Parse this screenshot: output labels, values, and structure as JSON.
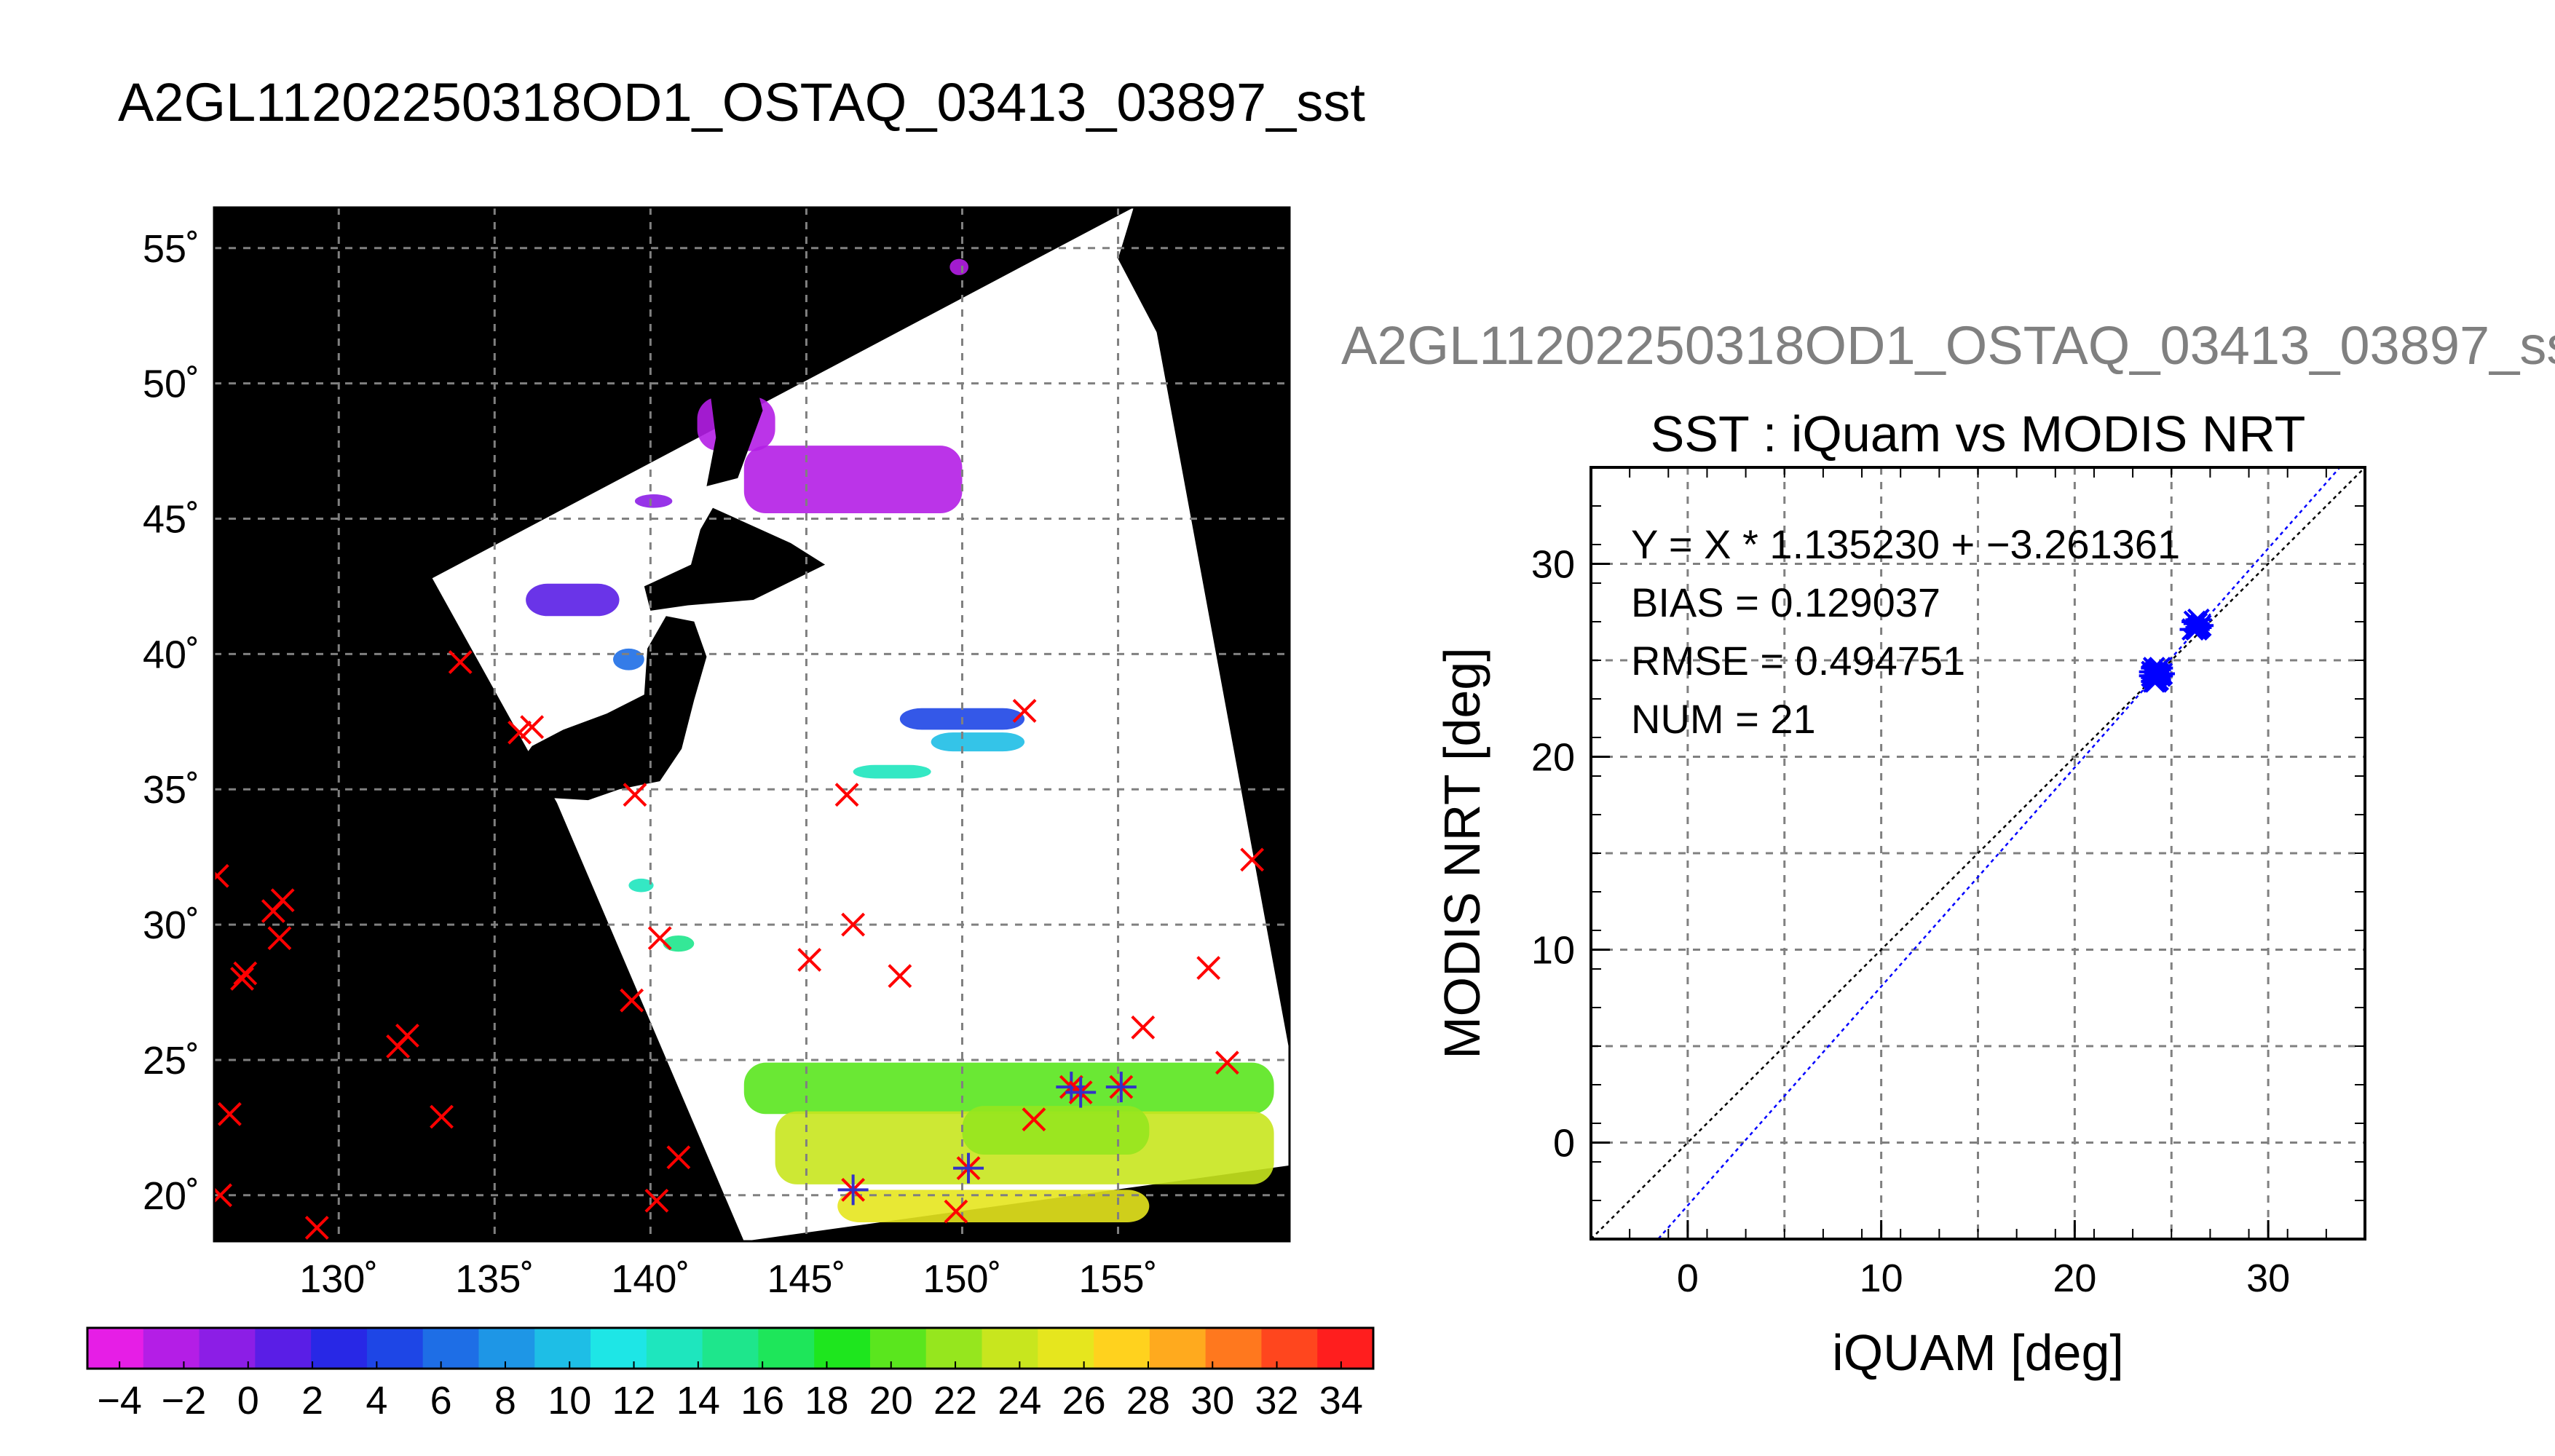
{
  "figure_title": "A2GL11202250318OD1_OSTAQ_03413_03897_sst",
  "colors": {
    "land": "#000000",
    "no_data": "#ffffff",
    "matchup_marker": "#ff0000",
    "used_marker": "#3232c8",
    "fit_line": "#0000ff",
    "identity_line": "#000000",
    "grid": "#808080"
  },
  "chart_data": [
    {
      "type": "heatmap",
      "title": "A2GL11202250318OD1_OSTAQ_03413_03897_sst",
      "description_kind": "sea surface temperature swath map with in-situ matchup markers",
      "xlim": [
        126,
        160.5
      ],
      "ylim": [
        18.3,
        56.5
      ],
      "x_ticks": [
        130,
        135,
        140,
        145,
        150,
        155
      ],
      "x_tick_labels": [
        "130˚",
        "135˚",
        "140˚",
        "145˚",
        "150˚",
        "155˚"
      ],
      "y_ticks": [
        20,
        25,
        30,
        35,
        40,
        45,
        50,
        55
      ],
      "y_tick_labels": [
        "20˚",
        "25˚",
        "30˚",
        "35˚",
        "40˚",
        "45˚",
        "50˚",
        "55˚"
      ],
      "grid": true,
      "swath_corners": [
        {
          "lon": 133.0,
          "lat": 42.8
        },
        {
          "lon": 155.5,
          "lat": 56.5
        },
        {
          "lon": 160.5,
          "lat": 25.3
        },
        {
          "lon": 160.5,
          "lat": 21.1
        },
        {
          "lon": 143.0,
          "lat": 18.3
        },
        {
          "lon": 137.0,
          "lat": 34.5
        }
      ],
      "sst_patches": [
        {
          "lon": 143.0,
          "lat": 23.0,
          "w": 17.0,
          "h": 1.9,
          "value": 24
        },
        {
          "lon": 144.0,
          "lat": 20.4,
          "w": 16.0,
          "h": 2.7,
          "value": 27
        },
        {
          "lon": 146.0,
          "lat": 19.0,
          "w": 10.0,
          "h": 1.2,
          "value": 29
        },
        {
          "lon": 150.0,
          "lat": 21.5,
          "w": 6.0,
          "h": 1.8,
          "value": 26
        },
        {
          "lon": 136.0,
          "lat": 41.4,
          "w": 3.0,
          "h": 1.2,
          "value": 1
        },
        {
          "lon": 138.8,
          "lat": 39.4,
          "w": 1.0,
          "h": 0.8,
          "value": 7
        },
        {
          "lon": 148.0,
          "lat": 37.2,
          "w": 4.0,
          "h": 0.8,
          "value": 5
        },
        {
          "lon": 149.0,
          "lat": 36.4,
          "w": 3.0,
          "h": 0.7,
          "value": 12
        },
        {
          "lon": 146.5,
          "lat": 35.4,
          "w": 2.5,
          "h": 0.5,
          "value": 16
        },
        {
          "lon": 140.4,
          "lat": 29.0,
          "w": 1.0,
          "h": 0.6,
          "value": 17
        },
        {
          "lon": 139.3,
          "lat": 31.2,
          "w": 0.8,
          "h": 0.5,
          "value": 16
        },
        {
          "lon": 143.0,
          "lat": 45.2,
          "w": 7.0,
          "h": 2.5,
          "value": -3
        },
        {
          "lon": 141.5,
          "lat": 47.5,
          "w": 2.5,
          "h": 2.0,
          "value": -2
        },
        {
          "lon": 139.5,
          "lat": 45.4,
          "w": 1.2,
          "h": 0.5,
          "value": -1
        },
        {
          "lon": 149.6,
          "lat": 54.0,
          "w": 0.6,
          "h": 0.6,
          "value": -3
        }
      ],
      "land_features": [
        {
          "name": "Hokkaido",
          "lon": 143.0,
          "lat": 43.3
        },
        {
          "name": "Honshu",
          "lon": 138.5,
          "lat": 37.0
        },
        {
          "name": "Sakhalin",
          "lon": 142.5,
          "lat": 49.5
        }
      ],
      "matchups_cross": [
        [
          133.9,
          39.7
        ],
        [
          135.8,
          37.1
        ],
        [
          136.2,
          37.3
        ],
        [
          139.5,
          34.8
        ],
        [
          146.3,
          34.8
        ],
        [
          126.1,
          31.8
        ],
        [
          128.2,
          30.9
        ],
        [
          127.9,
          30.5
        ],
        [
          128.1,
          29.5
        ],
        [
          127.0,
          28.2
        ],
        [
          126.9,
          28.0
        ],
        [
          139.4,
          27.2
        ],
        [
          140.3,
          29.5
        ],
        [
          145.1,
          28.7
        ],
        [
          146.5,
          30.0
        ],
        [
          148.0,
          28.1
        ],
        [
          152.0,
          37.9
        ],
        [
          159.3,
          32.4
        ],
        [
          157.9,
          28.4
        ],
        [
          155.8,
          26.2
        ],
        [
          131.9,
          25.5
        ],
        [
          132.2,
          25.9
        ],
        [
          126.5,
          23.0
        ],
        [
          133.3,
          22.9
        ],
        [
          126.2,
          20.0
        ],
        [
          129.3,
          18.8
        ],
        [
          140.2,
          19.8
        ],
        [
          140.9,
          21.4
        ],
        [
          152.3,
          22.8
        ],
        [
          158.5,
          24.9
        ],
        [
          149.8,
          19.4
        ]
      ],
      "matchups_used": [
        [
          146.5,
          20.2
        ],
        [
          150.2,
          21.0
        ],
        [
          153.5,
          24.0
        ],
        [
          153.8,
          23.8
        ],
        [
          155.1,
          24.0
        ]
      ]
    },
    {
      "type": "scatter",
      "title": "SST : iQuam vs MODIS NRT",
      "xlabel": "iQUAM [deg]",
      "ylabel": "MODIS NRT [deg]",
      "xlim": [
        -5,
        35
      ],
      "ylim": [
        -5,
        35
      ],
      "x_ticks": [
        0,
        10,
        20,
        30
      ],
      "y_ticks": [
        0,
        10,
        20,
        30
      ],
      "minor_step": 2,
      "grid_step": 5,
      "grid": true,
      "annotations": [
        "Y = X * 1.135230 + −3.261361",
        "BIAS = 0.129037",
        "RMSE = 0.494751",
        "NUM = 21"
      ],
      "fit": {
        "slope": 1.13523,
        "intercept": -3.261361
      },
      "points": [
        {
          "x": 24.1,
          "y": 24.1
        },
        {
          "x": 24.2,
          "y": 24.4
        },
        {
          "x": 24.3,
          "y": 24.5
        },
        {
          "x": 24.0,
          "y": 24.2
        },
        {
          "x": 24.4,
          "y": 24.2
        },
        {
          "x": 24.2,
          "y": 23.9
        },
        {
          "x": 24.5,
          "y": 24.3
        },
        {
          "x": 24.1,
          "y": 24.6
        },
        {
          "x": 24.3,
          "y": 24.0
        },
        {
          "x": 24.0,
          "y": 24.4
        },
        {
          "x": 24.3,
          "y": 24.3
        },
        {
          "x": 24.1,
          "y": 23.9
        },
        {
          "x": 24.4,
          "y": 24.6
        },
        {
          "x": 24.2,
          "y": 24.2
        },
        {
          "x": 26.1,
          "y": 26.6
        },
        {
          "x": 26.3,
          "y": 26.9
        },
        {
          "x": 26.4,
          "y": 26.7
        },
        {
          "x": 26.2,
          "y": 27.0
        },
        {
          "x": 26.5,
          "y": 26.8
        },
        {
          "x": 26.3,
          "y": 26.6
        },
        {
          "x": 26.4,
          "y": 27.1
        }
      ]
    }
  ],
  "colorbar": {
    "min": -5,
    "max": 35,
    "step": 2,
    "tick_labels": [
      "−4",
      "−2",
      "0",
      "2",
      "4",
      "6",
      "8",
      "10",
      "12",
      "14",
      "16",
      "18",
      "20",
      "22",
      "24",
      "26",
      "28",
      "30",
      "32",
      "34"
    ],
    "colors": [
      "#e61ee6",
      "#b41ee6",
      "#8c1ee6",
      "#5a1ee6",
      "#2828e6",
      "#1e46e6",
      "#1e6ee6",
      "#1e96e6",
      "#1ebee6",
      "#1ee6e6",
      "#1ee6be",
      "#1ee68c",
      "#1ee65a",
      "#1ee61e",
      "#5ae61e",
      "#96e61e",
      "#c8e61e",
      "#e6e61e",
      "#ffd21e",
      "#ffaa1e",
      "#ff781e",
      "#ff461e",
      "#ff1e1e"
    ]
  }
}
